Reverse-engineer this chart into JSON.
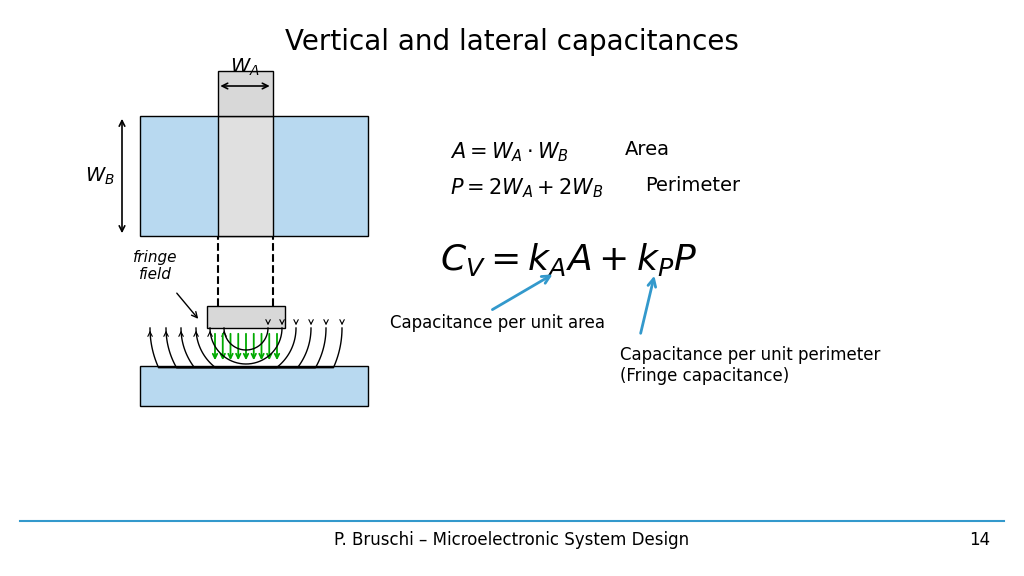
{
  "title": "Vertical and lateral capacitances",
  "title_fontsize": 20,
  "bg_color": "#ffffff",
  "blue_color": "#b8d9f0",
  "gray_color": "#d8d8d8",
  "arrow_color": "#3399cc",
  "green_color": "#00aa00",
  "footer_text": "P. Bruschi – Microelectronic System Design",
  "page_number": "14",
  "eq1": "$A = W_A \\cdot W_B$",
  "eq1_label": "Area",
  "eq2": "$P = 2W_A + 2W_B$",
  "eq2_label": "Perimeter",
  "eq3": "$C_V = k_A A + k_P P$",
  "ann1": "Capacitance per unit area",
  "ann2": "Capacitance per unit perimeter\n(Fringe capacitance)",
  "label_WA": "$W_A$",
  "label_WB": "$W_B$",
  "fringe_label": "fringe\nfield"
}
